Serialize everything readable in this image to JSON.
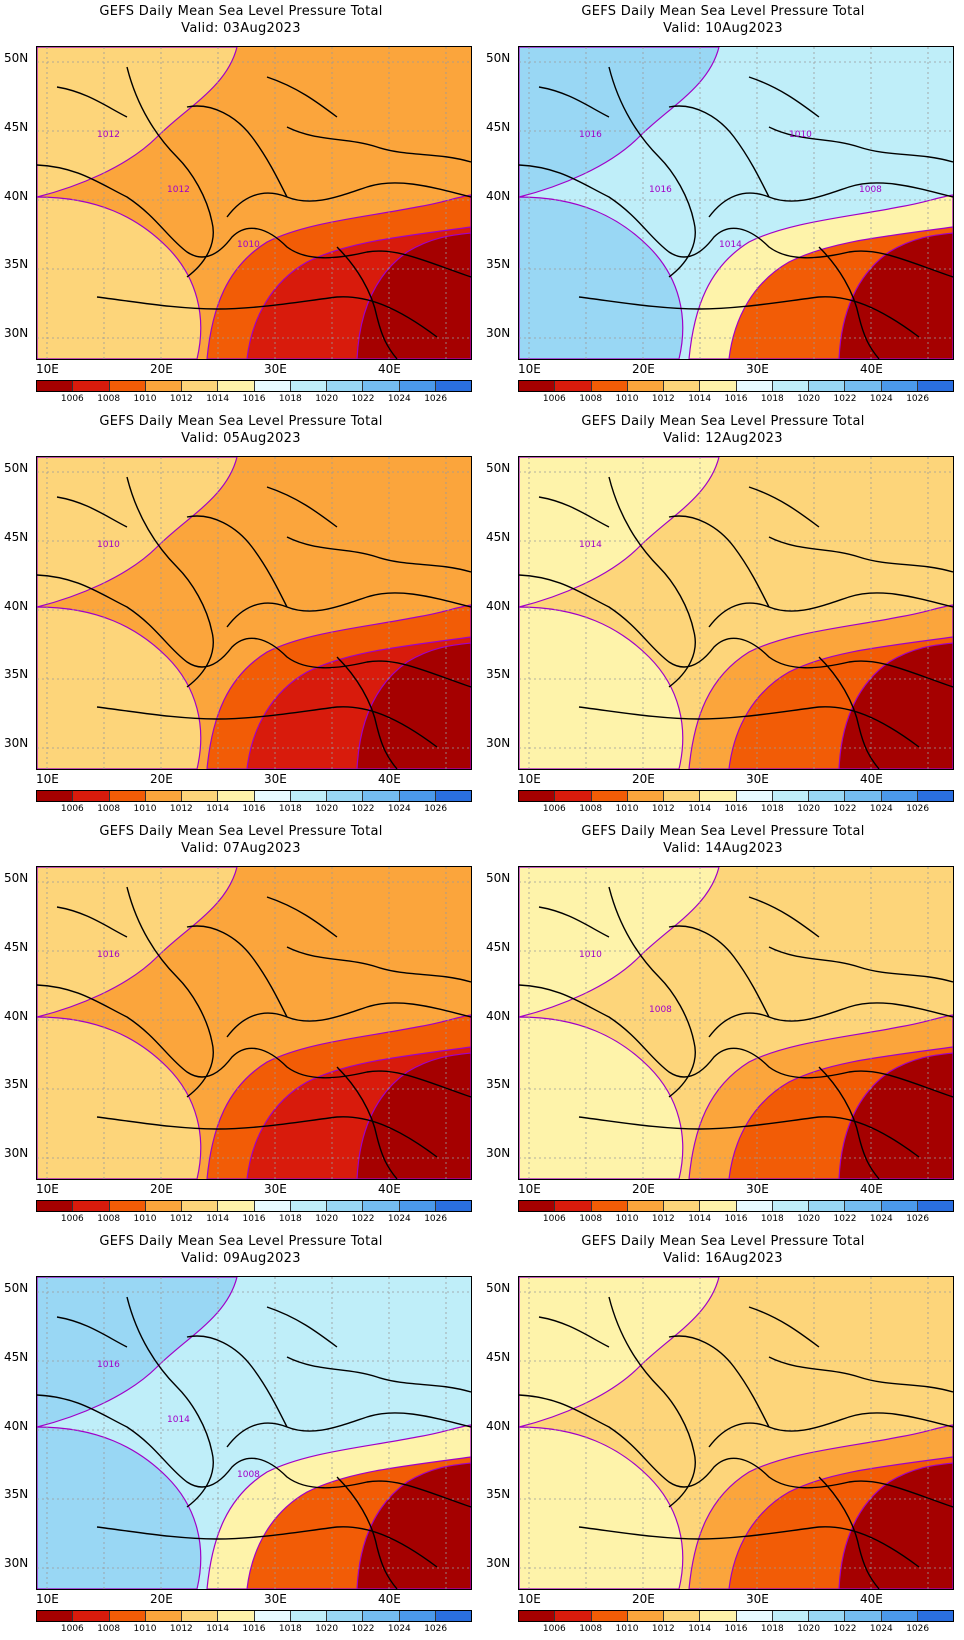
{
  "panels": [
    {
      "title": "GEFS Daily Mean Sea Level Pressure Total",
      "valid": "Valid: 03Aug2023",
      "style": "low",
      "contour_labels": [
        "1012",
        "1012",
        "1010"
      ]
    },
    {
      "title": "GEFS Daily Mean Sea Level Pressure Total",
      "valid": "Valid: 10Aug2023",
      "style": "high",
      "contour_labels": [
        "1016",
        "1016",
        "1014",
        "1010",
        "1008"
      ]
    },
    {
      "title": "GEFS Daily Mean Sea Level Pressure Total",
      "valid": "Valid: 05Aug2023",
      "style": "low",
      "contour_labels": [
        "1010"
      ]
    },
    {
      "title": "GEFS Daily Mean Sea Level Pressure Total",
      "valid": "Valid: 12Aug2023",
      "style": "mid",
      "contour_labels": [
        "1014"
      ]
    },
    {
      "title": "GEFS Daily Mean Sea Level Pressure Total",
      "valid": "Valid: 07Aug2023",
      "style": "low",
      "contour_labels": [
        "1016"
      ]
    },
    {
      "title": "GEFS Daily Mean Sea Level Pressure Total",
      "valid": "Valid: 14Aug2023",
      "style": "mid",
      "contour_labels": [
        "1010",
        "1008"
      ]
    },
    {
      "title": "GEFS Daily Mean Sea Level Pressure Total",
      "valid": "Valid: 09Aug2023",
      "style": "high",
      "contour_labels": [
        "1016",
        "1014",
        "1008"
      ]
    },
    {
      "title": "GEFS Daily Mean Sea Level Pressure Total",
      "valid": "Valid: 16Aug2023",
      "style": "mid",
      "contour_labels": []
    }
  ],
  "lat_labels": [
    "50N",
    "45N",
    "40N",
    "35N",
    "30N"
  ],
  "lon_labels": [
    "10E",
    "20E",
    "30E",
    "40E"
  ],
  "colorbar": {
    "labels": [
      "1006",
      "1008",
      "1010",
      "1012",
      "1014",
      "1016",
      "1018",
      "1020",
      "1022",
      "1024",
      "1026"
    ],
    "colors": [
      "#a50000",
      "#d81b0c",
      "#f25c06",
      "#fba53c",
      "#fdd57a",
      "#fef3aa",
      "#e8fbff",
      "#bfeef9",
      "#99d7f4",
      "#75bdf0",
      "#4b99ea",
      "#2a6fe0"
    ]
  }
}
